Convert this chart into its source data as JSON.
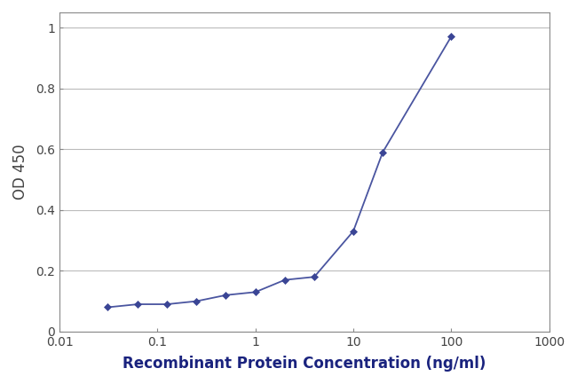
{
  "x": [
    0.031,
    0.063,
    0.125,
    0.25,
    0.5,
    1.0,
    2.0,
    4.0,
    10.0,
    20.0,
    100.0
  ],
  "y": [
    0.08,
    0.09,
    0.09,
    0.1,
    0.12,
    0.13,
    0.17,
    0.18,
    0.33,
    0.59,
    0.97
  ],
  "line_color": "#4a55a0",
  "marker_color": "#3a4595",
  "xlabel": "Recombinant Protein Concentration (ng/ml)",
  "ylabel": "OD 450",
  "xlim": [
    0.01,
    1000
  ],
  "ylim": [
    0,
    1.05
  ],
  "yticks": [
    0,
    0.2,
    0.4,
    0.6,
    0.8,
    1.0
  ],
  "yticklabels": [
    "0",
    "0.2",
    "0.4",
    "0.6",
    "0.8",
    "1"
  ],
  "xticks": [
    0.01,
    0.1,
    1,
    10,
    100,
    1000
  ],
  "xticklabels": [
    "0.01",
    "0.1",
    "1",
    "10",
    "100",
    "1000"
  ],
  "background_color": "#ffffff",
  "plot_bg_color": "#ffffff",
  "grid_color": "#bbbbbb",
  "spine_color": "#888888",
  "axis_label_fontsize": 12,
  "tick_fontsize": 10,
  "xlabel_color": "#1a237e",
  "ylabel_color": "#444444"
}
